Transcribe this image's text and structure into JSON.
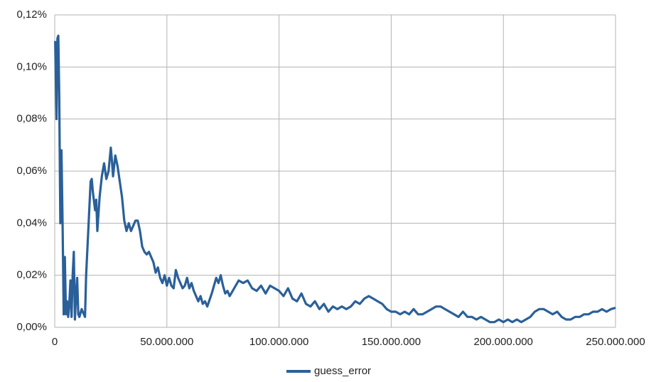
{
  "chart_data": {
    "type": "line",
    "x": [
      200000,
      800000,
      1200000,
      1600000,
      2000000,
      2500000,
      3000000,
      3500000,
      4000000,
      4500000,
      5000000,
      5500000,
      6000000,
      6500000,
      7000000,
      7500000,
      8000000,
      8500000,
      9000000,
      9500000,
      10000000,
      10500000,
      11000000,
      12000000,
      13000000,
      13500000,
      14000000,
      15000000,
      16000000,
      16500000,
      17000000,
      18000000,
      18500000,
      19000000,
      20000000,
      21000000,
      22000000,
      23000000,
      24000000,
      25000000,
      25500000,
      26000000,
      27000000,
      28000000,
      29000000,
      30000000,
      31000000,
      32000000,
      33000000,
      34000000,
      35000000,
      36000000,
      37000000,
      38000000,
      39000000,
      40000000,
      41000000,
      42000000,
      44000000,
      45000000,
      46000000,
      47000000,
      48000000,
      49000000,
      50000000,
      51000000,
      52000000,
      53000000,
      54000000,
      55000000,
      56000000,
      57000000,
      58000000,
      59000000,
      60000000,
      61000000,
      62000000,
      63000000,
      64000000,
      65000000,
      66000000,
      67000000,
      68000000,
      70000000,
      72000000,
      73000000,
      74000000,
      75000000,
      76000000,
      77000000,
      78000000,
      80000000,
      82000000,
      84000000,
      86000000,
      88000000,
      90000000,
      92000000,
      94000000,
      96000000,
      98000000,
      100000000,
      102000000,
      104000000,
      106000000,
      108000000,
      110000000,
      112000000,
      114000000,
      116000000,
      118000000,
      120000000,
      122000000,
      124000000,
      126000000,
      128000000,
      130000000,
      132000000,
      134000000,
      136000000,
      138000000,
      140000000,
      142000000,
      144000000,
      146000000,
      148000000,
      150000000,
      152000000,
      154000000,
      156000000,
      158000000,
      160000000,
      162000000,
      164000000,
      166000000,
      168000000,
      170000000,
      172000000,
      174000000,
      176000000,
      178000000,
      180000000,
      182000000,
      184000000,
      186000000,
      188000000,
      190000000,
      192000000,
      194000000,
      196000000,
      198000000,
      200000000,
      202000000,
      204000000,
      206000000,
      208000000,
      210000000,
      212000000,
      214000000,
      216000000,
      218000000,
      220000000,
      222000000,
      224000000,
      226000000,
      228000000,
      230000000,
      232000000,
      234000000,
      236000000,
      238000000,
      240000000,
      242000000,
      244000000,
      246000000,
      248000000,
      250000000
    ],
    "series": [
      {
        "name": "guess_error",
        "color": "#2a6099",
        "values": [
          0.11,
          0.08,
          0.111,
          0.112,
          0.09,
          0.04,
          0.068,
          0.04,
          0.005,
          0.027,
          0.005,
          0.01,
          0.004,
          0.009,
          0.018,
          0.004,
          0.02,
          0.029,
          0.003,
          0.012,
          0.019,
          0.005,
          0.004,
          0.007,
          0.005,
          0.004,
          0.02,
          0.038,
          0.056,
          0.057,
          0.052,
          0.045,
          0.049,
          0.037,
          0.05,
          0.058,
          0.063,
          0.057,
          0.06,
          0.069,
          0.064,
          0.058,
          0.066,
          0.062,
          0.056,
          0.05,
          0.041,
          0.037,
          0.04,
          0.037,
          0.039,
          0.041,
          0.041,
          0.037,
          0.031,
          0.029,
          0.028,
          0.029,
          0.025,
          0.021,
          0.023,
          0.019,
          0.017,
          0.02,
          0.016,
          0.019,
          0.016,
          0.015,
          0.022,
          0.019,
          0.017,
          0.015,
          0.016,
          0.019,
          0.015,
          0.017,
          0.014,
          0.012,
          0.01,
          0.012,
          0.009,
          0.01,
          0.008,
          0.013,
          0.019,
          0.017,
          0.02,
          0.016,
          0.013,
          0.014,
          0.012,
          0.015,
          0.018,
          0.017,
          0.018,
          0.015,
          0.014,
          0.016,
          0.013,
          0.016,
          0.015,
          0.014,
          0.012,
          0.015,
          0.011,
          0.01,
          0.013,
          0.009,
          0.008,
          0.01,
          0.007,
          0.009,
          0.006,
          0.008,
          0.007,
          0.008,
          0.007,
          0.008,
          0.01,
          0.009,
          0.011,
          0.012,
          0.011,
          0.01,
          0.009,
          0.007,
          0.006,
          0.006,
          0.005,
          0.006,
          0.005,
          0.007,
          0.005,
          0.005,
          0.006,
          0.007,
          0.008,
          0.008,
          0.007,
          0.006,
          0.005,
          0.004,
          0.006,
          0.004,
          0.004,
          0.003,
          0.004,
          0.003,
          0.002,
          0.002,
          0.003,
          0.002,
          0.003,
          0.002,
          0.003,
          0.002,
          0.003,
          0.004,
          0.006,
          0.007,
          0.007,
          0.006,
          0.005,
          0.006,
          0.004,
          0.003,
          0.003,
          0.004,
          0.004,
          0.005,
          0.005,
          0.006,
          0.006,
          0.007,
          0.006,
          0.007,
          0.0075
        ]
      }
    ],
    "xlim": [
      0,
      250000000
    ],
    "xticks": [
      0,
      {
        "value": 50000000,
        "label": "50.000.000"
      },
      {
        "value": 100000000,
        "label": "100.000.000"
      },
      {
        "value": 150000000,
        "label": "150.000.000"
      },
      {
        "value": 200000000,
        "label": "200.000.000"
      },
      {
        "value": 250000000,
        "label": "250.000.000"
      }
    ],
    "ylim": [
      0,
      0.12
    ],
    "yticks": [
      {
        "value": 0,
        "label": "0,00%"
      },
      {
        "value": 0.02,
        "label": "0,02%"
      },
      {
        "value": 0.04,
        "label": "0,04%"
      },
      {
        "value": 0.06,
        "label": "0,06%"
      },
      {
        "value": 0.08,
        "label": "0,08%"
      },
      {
        "value": 0.1,
        "label": "0,10%"
      },
      {
        "value": 0.12,
        "label": "0,12%"
      }
    ],
    "grid": true,
    "legend": "bottom"
  }
}
